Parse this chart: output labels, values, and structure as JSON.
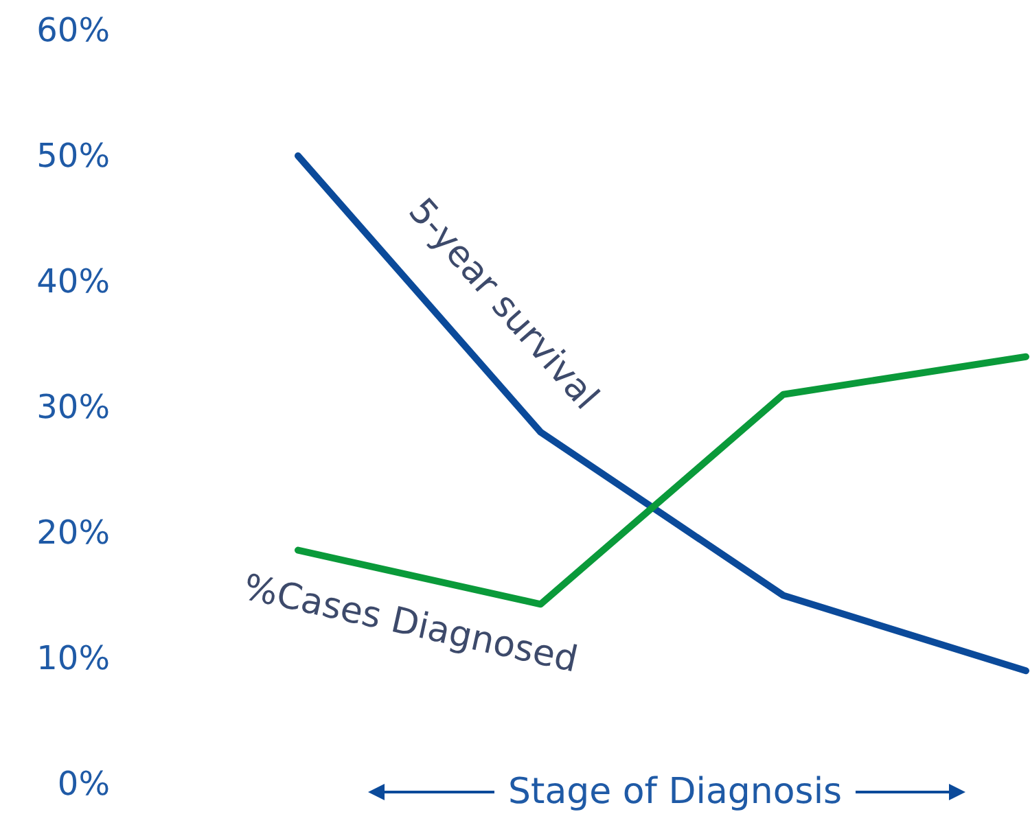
{
  "chart_data": {
    "type": "line",
    "xlabel": "Stage of Diagnosis",
    "categories": [
      null,
      null,
      null,
      null
    ],
    "series": [
      {
        "name": "5-year survival",
        "color": "#0b4a9a",
        "values": [
          50,
          28,
          15,
          9
        ]
      },
      {
        "name": "%Cases Diagnosed",
        "color": "#0a9a3a",
        "values": [
          18.6,
          14.3,
          31,
          34
        ]
      }
    ],
    "ylim": [
      0,
      60
    ],
    "yticks": [
      {
        "value": 0,
        "label": "0%"
      },
      {
        "value": 10,
        "label": "10%"
      },
      {
        "value": 20,
        "label": "20%"
      },
      {
        "value": 30,
        "label": "30%"
      },
      {
        "value": 40,
        "label": "40%"
      },
      {
        "value": 50,
        "label": "50%"
      },
      {
        "value": 60,
        "label": "60%"
      }
    ],
    "grid": false,
    "legend": false,
    "marker": "none",
    "line_style": "solid"
  }
}
